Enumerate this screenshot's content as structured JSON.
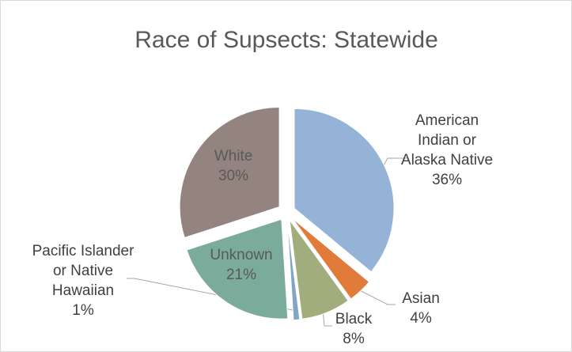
{
  "chart_data": {
    "type": "pie",
    "title": "Race of Supsects: Statewide",
    "categories": [
      "American Indian or Alaska Native",
      "Asian",
      "Black",
      "Pacific Islander or Native Hawaiian",
      "Unknown",
      "White"
    ],
    "values": [
      36,
      4,
      8,
      1,
      21,
      30
    ],
    "value_labels": [
      "36%",
      "4%",
      "8%",
      "1%",
      "21%",
      "30%"
    ],
    "colors": [
      "#95b3d7",
      "#e07b39",
      "#a2ad7d",
      "#7fa6c4",
      "#7aab9b",
      "#948480"
    ]
  }
}
